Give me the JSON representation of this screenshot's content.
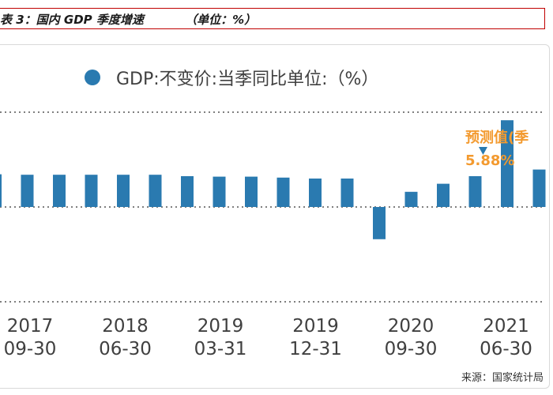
{
  "caption": {
    "title": "表 3：国内 GDP 季度增速",
    "unit": "（单位：%）"
  },
  "source": "来源：国家统计局",
  "colors": {
    "bar": "#2a7ab0",
    "forecast_bar": "#f39a2f",
    "forecast_text": "#f39a2f",
    "grid": "#555555",
    "text": "#404040"
  },
  "chart_data": {
    "type": "bar",
    "legend": "GDP:不变价:当季同比单位:（%）",
    "legend_position": "top",
    "x_tick_labels": [
      {
        "year": "2017",
        "date": "09-30"
      },
      {
        "year": "2018",
        "date": "06-30"
      },
      {
        "year": "2019",
        "date": "03-31"
      },
      {
        "year": "2019",
        "date": "12-31"
      },
      {
        "year": "2020",
        "date": "09-30"
      },
      {
        "year": "2021",
        "date": "06-30"
      }
    ],
    "series": [
      {
        "values": [
          6.9,
          6.8,
          6.8,
          6.8,
          6.8,
          6.8,
          6.5,
          6.4,
          6.4,
          6.2,
          6.0,
          6.0,
          -6.8,
          3.2,
          4.9,
          6.5,
          18.3,
          7.9
        ]
      }
    ],
    "forecast": {
      "label": "预测值(季",
      "value_label": "5.88%",
      "value": 5.88
    },
    "ylim": [
      -20,
      20
    ],
    "grid": "dotted horizontal"
  }
}
